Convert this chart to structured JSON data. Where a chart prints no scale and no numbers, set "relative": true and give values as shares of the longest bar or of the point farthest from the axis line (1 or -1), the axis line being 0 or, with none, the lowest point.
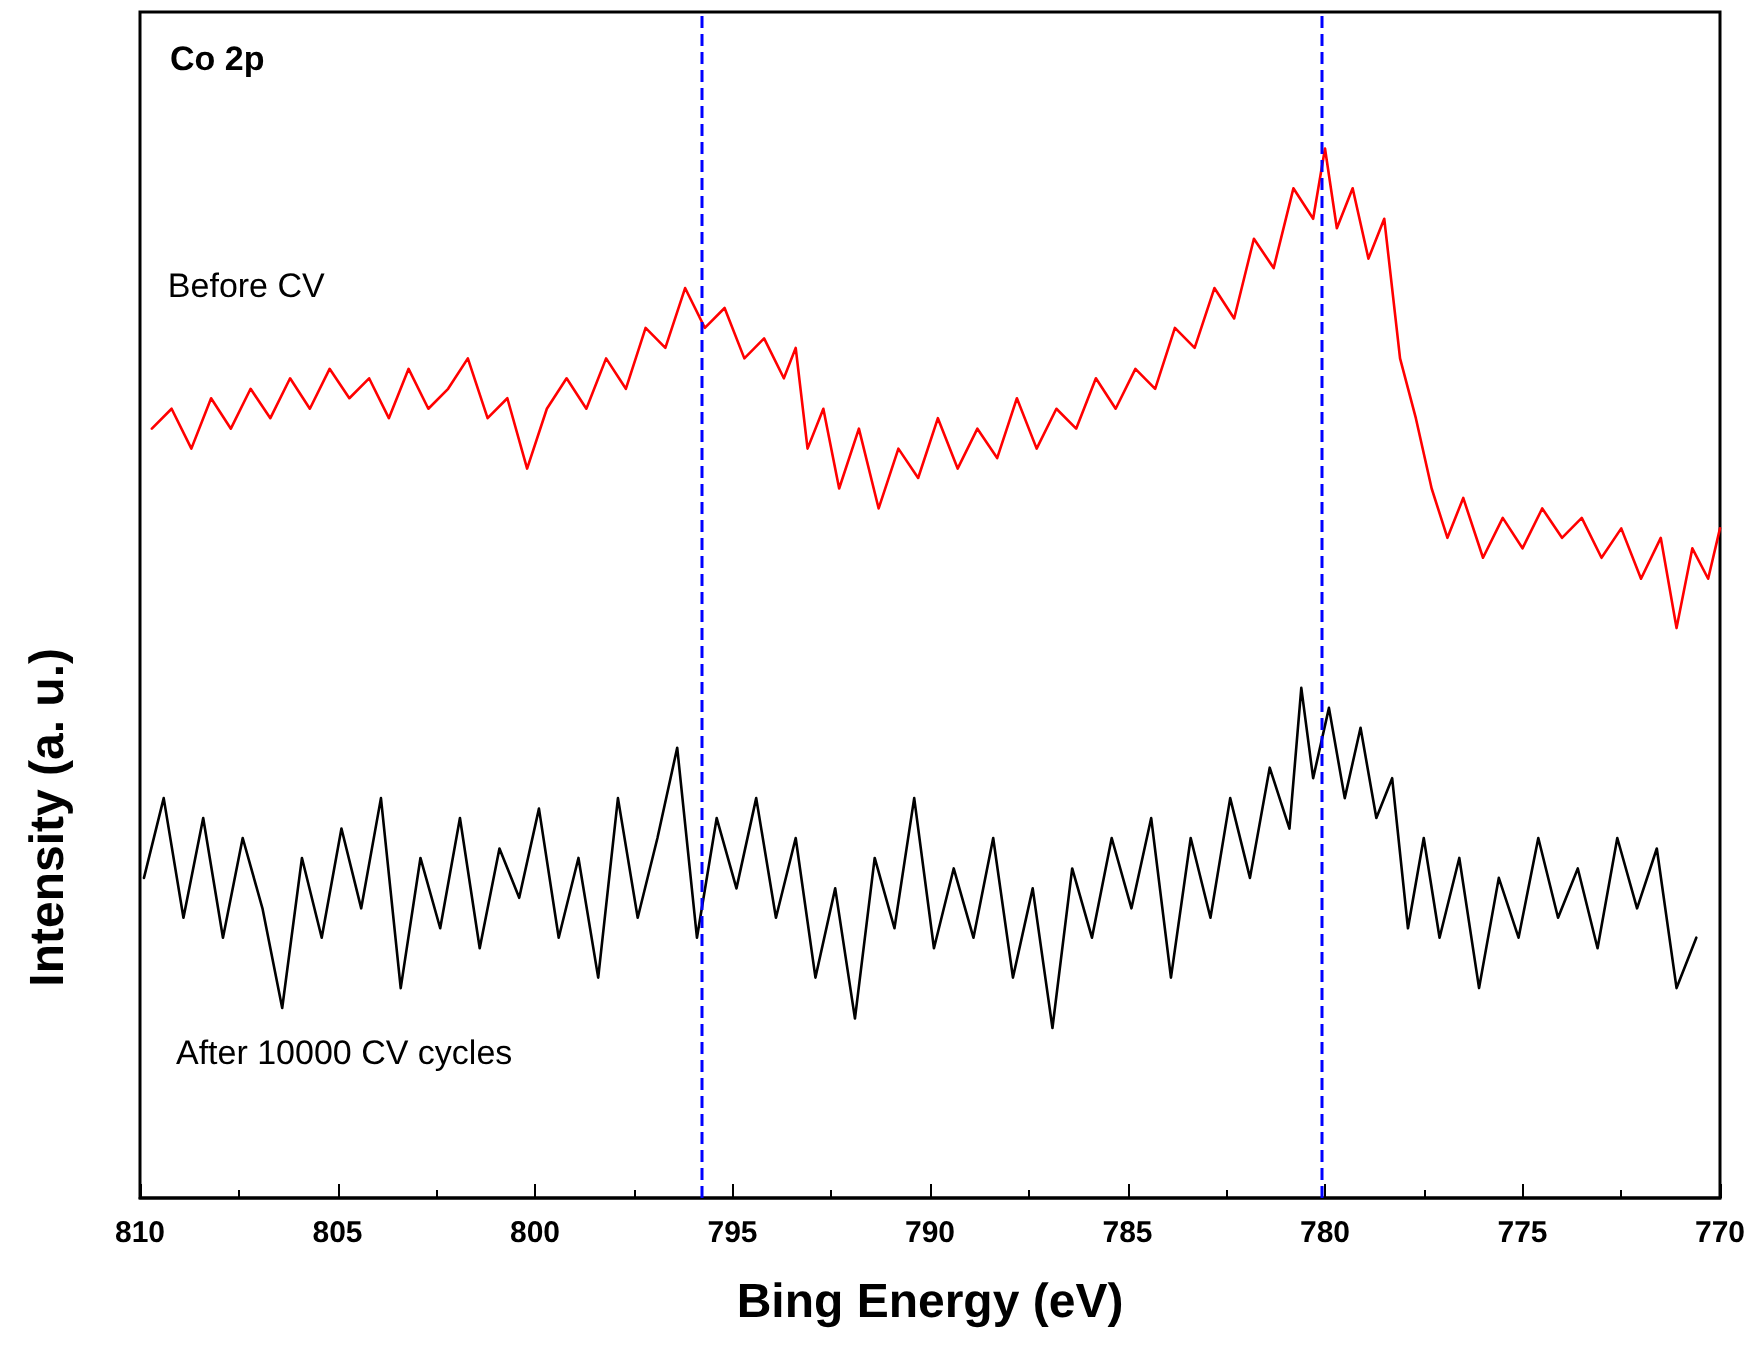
{
  "chart_data": {
    "type": "line",
    "title": "Co 2p",
    "xlabel": "Bing Energy (eV)",
    "ylabel": "Intensity (a. u.)",
    "relative": true,
    "legend": false,
    "grid": false,
    "marker": "none",
    "line_style": "solid",
    "xlim": [
      810,
      770
    ],
    "xticks": [
      810,
      805,
      800,
      795,
      790,
      785,
      780,
      775,
      770
    ],
    "ref_lines": [
      {
        "axis": "x",
        "value": 795.8,
        "color": "#0000ff",
        "line_style": "dashed"
      },
      {
        "axis": "x",
        "value": 780.1,
        "color": "#0000ff",
        "line_style": "dashed"
      }
    ],
    "series": [
      {
        "name": "Before CV",
        "color": "#ff0000",
        "x": [
          809.7,
          809.2,
          808.7,
          808.2,
          807.7,
          807.2,
          806.7,
          806.2,
          805.7,
          805.2,
          804.7,
          804.2,
          803.7,
          803.2,
          802.7,
          802.2,
          801.7,
          801.2,
          800.7,
          800.2,
          799.7,
          799.2,
          798.7,
          798.2,
          797.7,
          797.2,
          796.7,
          796.2,
          795.7,
          795.2,
          794.7,
          794.2,
          793.7,
          793.4,
          793.1,
          792.7,
          792.3,
          791.8,
          791.3,
          790.8,
          790.3,
          789.8,
          789.3,
          788.8,
          788.3,
          787.8,
          787.3,
          786.8,
          786.3,
          785.8,
          785.3,
          784.8,
          784.3,
          783.8,
          783.3,
          782.8,
          782.3,
          781.8,
          781.3,
          780.8,
          780.3,
          780.0,
          779.7,
          779.3,
          778.9,
          778.5,
          778.1,
          777.7,
          777.3,
          776.9,
          776.5,
          776.0,
          775.5,
          775.0,
          774.5,
          774.0,
          773.5,
          773.0,
          772.5,
          772.0,
          771.5,
          771.1,
          770.7,
          770.3,
          770.0
        ],
        "values": [
          0.733,
          0.752,
          0.714,
          0.762,
          0.733,
          0.771,
          0.743,
          0.781,
          0.752,
          0.79,
          0.762,
          0.781,
          0.743,
          0.79,
          0.752,
          0.771,
          0.8,
          0.743,
          0.762,
          0.695,
          0.752,
          0.781,
          0.752,
          0.8,
          0.771,
          0.829,
          0.81,
          0.867,
          0.829,
          0.848,
          0.8,
          0.819,
          0.781,
          0.81,
          0.714,
          0.752,
          0.676,
          0.733,
          0.657,
          0.714,
          0.686,
          0.743,
          0.695,
          0.733,
          0.705,
          0.762,
          0.714,
          0.752,
          0.733,
          0.781,
          0.752,
          0.79,
          0.771,
          0.829,
          0.81,
          0.867,
          0.838,
          0.914,
          0.886,
          0.962,
          0.933,
          1.0,
          0.924,
          0.962,
          0.895,
          0.933,
          0.8,
          0.743,
          0.676,
          0.629,
          0.667,
          0.61,
          0.648,
          0.619,
          0.657,
          0.629,
          0.648,
          0.61,
          0.638,
          0.59,
          0.629,
          0.543,
          0.619,
          0.59,
          0.638
        ]
      },
      {
        "name": "After 10000 CV cycles",
        "color": "#000000",
        "x": [
          809.9,
          809.4,
          808.9,
          808.4,
          807.9,
          807.4,
          806.9,
          806.4,
          805.9,
          805.4,
          804.9,
          804.4,
          803.9,
          803.4,
          802.9,
          802.4,
          801.9,
          801.4,
          800.9,
          800.4,
          799.9,
          799.4,
          798.9,
          798.4,
          797.9,
          797.4,
          796.9,
          796.4,
          795.9,
          795.4,
          794.9,
          794.4,
          793.9,
          793.4,
          792.9,
          792.4,
          791.9,
          791.4,
          790.9,
          790.4,
          789.9,
          789.4,
          788.9,
          788.4,
          787.9,
          787.4,
          786.9,
          786.4,
          785.9,
          785.4,
          784.9,
          784.4,
          783.9,
          783.4,
          782.9,
          782.4,
          781.9,
          781.4,
          780.9,
          780.6,
          780.3,
          779.9,
          779.5,
          779.1,
          778.7,
          778.3,
          777.9,
          777.5,
          777.1,
          776.6,
          776.1,
          775.6,
          775.1,
          774.6,
          774.1,
          773.6,
          773.1,
          772.6,
          772.1,
          771.6,
          771.1,
          770.6
        ],
        "values": [
          0.305,
          0.381,
          0.267,
          0.362,
          0.248,
          0.343,
          0.276,
          0.181,
          0.324,
          0.248,
          0.352,
          0.276,
          0.381,
          0.2,
          0.324,
          0.257,
          0.362,
          0.238,
          0.333,
          0.286,
          0.371,
          0.248,
          0.324,
          0.21,
          0.381,
          0.267,
          0.343,
          0.429,
          0.248,
          0.362,
          0.295,
          0.381,
          0.267,
          0.343,
          0.21,
          0.295,
          0.171,
          0.324,
          0.257,
          0.381,
          0.238,
          0.314,
          0.248,
          0.343,
          0.21,
          0.295,
          0.162,
          0.314,
          0.248,
          0.343,
          0.276,
          0.362,
          0.21,
          0.343,
          0.267,
          0.381,
          0.305,
          0.41,
          0.352,
          0.486,
          0.4,
          0.467,
          0.381,
          0.448,
          0.362,
          0.4,
          0.257,
          0.343,
          0.248,
          0.324,
          0.2,
          0.305,
          0.248,
          0.343,
          0.267,
          0.314,
          0.238,
          0.343,
          0.276,
          0.333,
          0.2,
          0.248
        ]
      }
    ]
  }
}
